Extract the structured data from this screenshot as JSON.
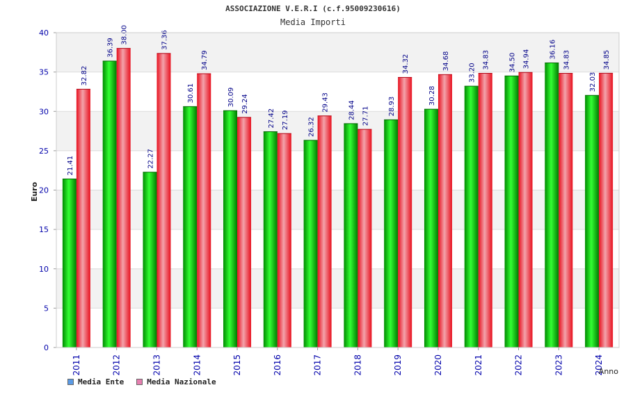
{
  "chart_data": {
    "type": "bar",
    "title": "ASSOCIAZIONE V.E.R.I (c.f.95009230616)",
    "subtitle": "Media Importi",
    "xlabel": "Anno",
    "ylabel": "Euro",
    "ylim": [
      0,
      40
    ],
    "yticks": [
      "0",
      "5",
      "10",
      "15",
      "20",
      "25",
      "30",
      "35",
      "40"
    ],
    "categories": [
      "2011",
      "2012",
      "2013",
      "2014",
      "2015",
      "2016",
      "2017",
      "2018",
      "2019",
      "2020",
      "2021",
      "2022",
      "2023",
      "2024"
    ],
    "series": [
      {
        "name": "Media Ente",
        "color": "#00c000",
        "values": [
          21.41,
          36.39,
          22.27,
          30.61,
          30.09,
          27.42,
          26.32,
          28.44,
          28.93,
          30.28,
          33.2,
          34.5,
          36.16,
          32.03
        ],
        "labels": [
          "21.41",
          "36.39",
          "22.27",
          "30.61",
          "30.09",
          "27.42",
          "26.32",
          "28.44",
          "28.93",
          "30.28",
          "33.20",
          "34.50",
          "36.16",
          "32.03"
        ]
      },
      {
        "name": "Media Nazionale",
        "color": "#ee1020",
        "values": [
          32.82,
          38.0,
          37.36,
          34.79,
          29.24,
          27.19,
          29.43,
          27.71,
          34.32,
          34.68,
          34.83,
          34.94,
          34.83,
          34.85
        ],
        "labels": [
          "32.82",
          "38.00",
          "37.36",
          "34.79",
          "29.24",
          "27.19",
          "29.43",
          "27.71",
          "34.32",
          "34.68",
          "34.83",
          "34.94",
          "34.83",
          "34.85"
        ]
      }
    ],
    "legend": [
      {
        "label": "Media Ente",
        "color": "#5b9be6"
      },
      {
        "label": "Media Nazionale",
        "color": "#e67fb0"
      }
    ],
    "grid": true,
    "legend_position": "bottom-left"
  }
}
